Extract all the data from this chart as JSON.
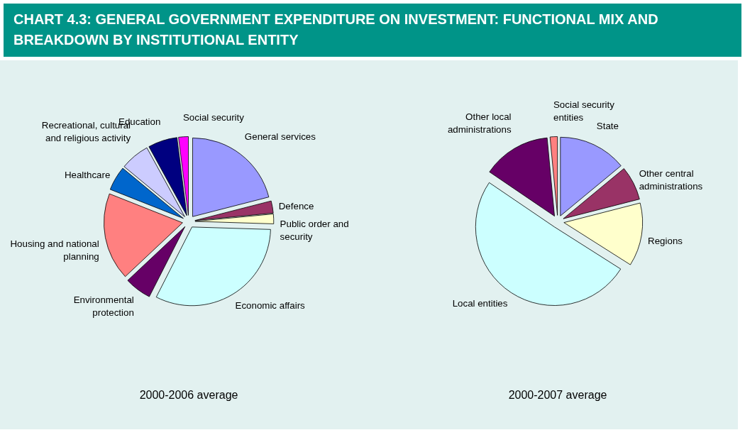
{
  "chart_data": [
    {
      "type": "pie",
      "title": "CHART 4.3: GENERAL GOVERNMENT EXPENDITURE ON INVESTMENT: FUNCTIONAL MIX AND BREAKDOWN BY INSTITUTIONAL ENTITY",
      "subtitle": "2000-2006 average",
      "categories": [
        "General services",
        "Defence",
        "Public order and security",
        "Economic affairs",
        "Environmental protection",
        "Housing and national planning",
        "Healthcare",
        "Recreational, cultural and religious activity",
        "Education",
        "Social security"
      ],
      "values": [
        21,
        2.5,
        2,
        32,
        5.5,
        18,
        5,
        6,
        6,
        2
      ],
      "colors": [
        "#9999ff",
        "#993366",
        "#ffffcc",
        "#ccffff",
        "#660066",
        "#ff8080",
        "#0066cc",
        "#ccccff",
        "#000080",
        "#ff00ff"
      ]
    },
    {
      "type": "pie",
      "subtitle": "2000-2007 average",
      "categories": [
        "State",
        "Other central administrations",
        "Regions",
        "Local entities",
        "Other local administrations",
        "Social security entities"
      ],
      "values": [
        14,
        7,
        13,
        50.5,
        14,
        1.5
      ],
      "colors": [
        "#9999ff",
        "#993366",
        "#ffffcc",
        "#ccffff",
        "#660066",
        "#ff8080"
      ]
    }
  ]
}
